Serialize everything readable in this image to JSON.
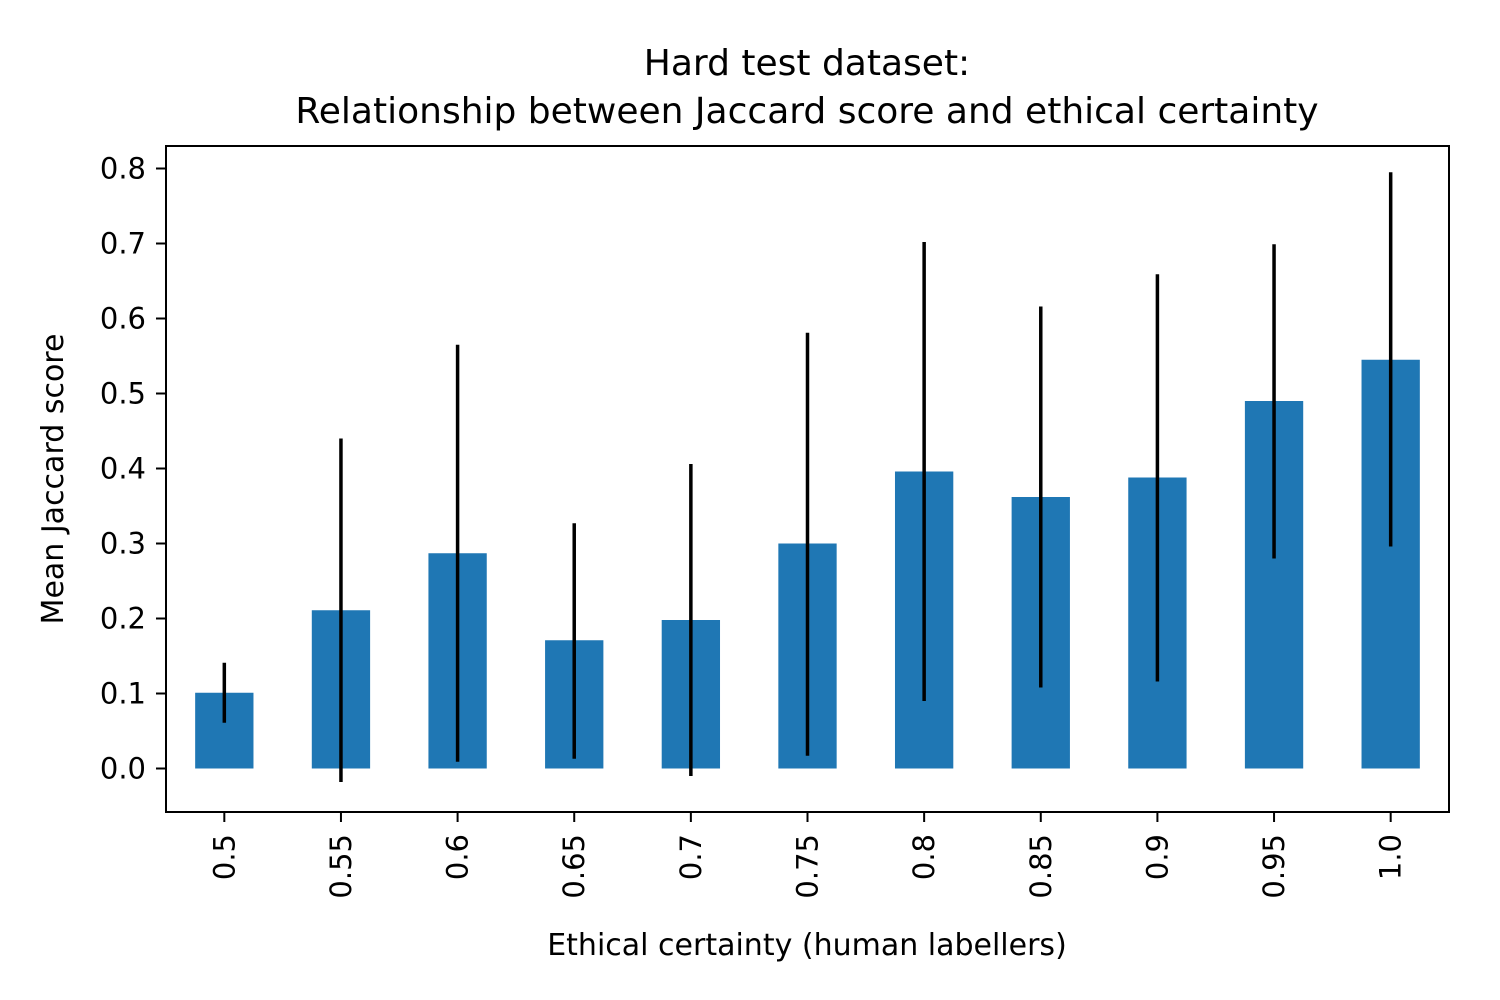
{
  "chart_data": {
    "type": "bar",
    "title_lines": [
      "Hard test dataset:",
      "Relationship between Jaccard score and ethical certainty"
    ],
    "xlabel": "Ethical certainty (human labellers)",
    "ylabel": "Mean Jaccard score",
    "categories": [
      "0.5",
      "0.55",
      "0.6",
      "0.65",
      "0.7",
      "0.75",
      "0.8",
      "0.85",
      "0.9",
      "0.95",
      "1.0"
    ],
    "values": [
      0.101,
      0.211,
      0.287,
      0.171,
      0.198,
      0.3,
      0.396,
      0.362,
      0.388,
      0.49,
      0.545
    ],
    "error_bars": [
      {
        "low": 0.061,
        "high": 0.141
      },
      {
        "low": -0.018,
        "high": 0.44
      },
      {
        "low": 0.009,
        "high": 0.565
      },
      {
        "low": 0.013,
        "high": 0.327
      },
      {
        "low": -0.01,
        "high": 0.406
      },
      {
        "low": 0.017,
        "high": 0.581
      },
      {
        "low": 0.09,
        "high": 0.702
      },
      {
        "low": 0.108,
        "high": 0.616
      },
      {
        "low": 0.116,
        "high": 0.659
      },
      {
        "low": 0.28,
        "high": 0.699
      },
      {
        "low": 0.296,
        "high": 0.795
      }
    ],
    "y_ticks": [
      "0.0",
      "0.1",
      "0.2",
      "0.3",
      "0.4",
      "0.5",
      "0.6",
      "0.7",
      "0.8"
    ],
    "ylim": [
      -0.058,
      0.83
    ],
    "grid": false,
    "legend": "none",
    "x_tick_rotation": "vertical",
    "colors": {
      "bar": "#1f77b4",
      "error_bar": "#000000",
      "axes": "#000000"
    }
  }
}
